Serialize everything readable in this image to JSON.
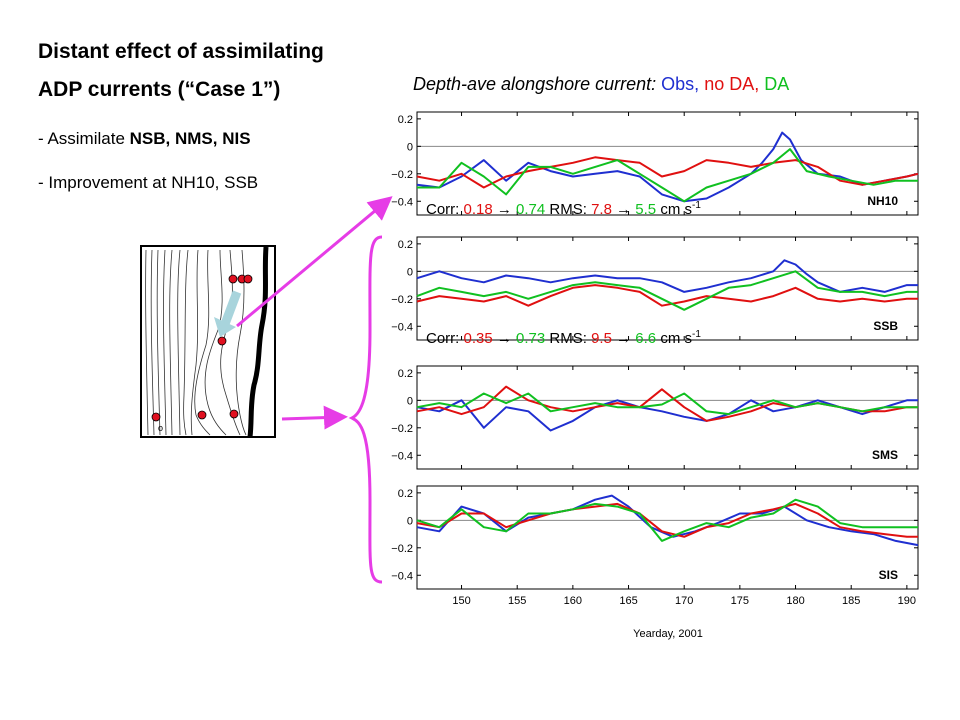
{
  "title": {
    "line1": "Distant effect of assimilating",
    "line2": "ADP currents (“Case 1”)"
  },
  "bullets": {
    "b1_prefix": "- Assimilate ",
    "b1_bold": "NSB, NMS, NIS",
    "b2": "- Improvement at NH10, SSB"
  },
  "subtitle": {
    "prefix": "Depth-ave alongshore current: ",
    "obs": "Obs",
    "sep1": ", ",
    "nodas": "no DA",
    "sep2": ", ",
    "da": "DA"
  },
  "stats": [
    {
      "corr_label": "Corr: ",
      "corr_before": "0.18",
      "arrow": "→",
      "corr_after": "0.74",
      "rms_label": " RMS: ",
      "rms_before": "7.8",
      "rms_after": "5.5",
      "units": " cm s",
      "sup": "-1"
    },
    {
      "corr_label": "Corr: ",
      "corr_before": "0.35",
      "arrow": "→",
      "corr_after": "0.73",
      "rms_label": " RMS: ",
      "rms_before": "9.5",
      "rms_after": "6.6",
      "units": " cm s",
      "sup": "-1"
    }
  ],
  "colors": {
    "obs": "#1f2fd0",
    "nodas": "#e01010",
    "da": "#10c020",
    "magenta": "#e63ce6",
    "map_arrow": "#a8d4dc",
    "station": "#e01020"
  },
  "chart_data": {
    "type": "line",
    "xlabel": "Yearday, 2001",
    "xlim": [
      146,
      191
    ],
    "ylim": [
      -0.5,
      0.25
    ],
    "xticks": [
      150,
      155,
      160,
      165,
      170,
      175,
      180,
      185,
      190
    ],
    "yticks": [
      0.2,
      0,
      -0.2,
      -0.4
    ],
    "ytick_labels": [
      "0.2",
      "0",
      "−0.2",
      "−0.4"
    ],
    "panels": [
      {
        "label": "NH10",
        "series": [
          {
            "color_key": "obs",
            "x": [
              146,
              148,
              150,
              152,
              154,
              156,
              158,
              160,
              162,
              164,
              166,
              168,
              170,
              172,
              174,
              176,
              177,
              178,
              178.8,
              179.5,
              180.5,
              182,
              184,
              186,
              188,
              190,
              191
            ],
            "y": [
              -0.28,
              -0.3,
              -0.22,
              -0.1,
              -0.25,
              -0.12,
              -0.18,
              -0.22,
              -0.2,
              -0.18,
              -0.22,
              -0.35,
              -0.4,
              -0.38,
              -0.3,
              -0.2,
              -0.12,
              -0.02,
              0.1,
              0.05,
              -0.1,
              -0.2,
              -0.22,
              -0.28,
              -0.25,
              -0.22,
              -0.2
            ]
          },
          {
            "color_key": "nodas",
            "x": [
              146,
              148,
              150,
              152,
              154,
              156,
              158,
              160,
              162,
              164,
              166,
              168,
              170,
              172,
              174,
              176,
              178,
              180,
              182,
              184,
              186,
              188,
              190,
              191
            ],
            "y": [
              -0.22,
              -0.25,
              -0.2,
              -0.3,
              -0.22,
              -0.18,
              -0.15,
              -0.12,
              -0.08,
              -0.1,
              -0.12,
              -0.22,
              -0.18,
              -0.1,
              -0.12,
              -0.15,
              -0.12,
              -0.1,
              -0.15,
              -0.25,
              -0.28,
              -0.25,
              -0.22,
              -0.2
            ]
          },
          {
            "color_key": "da",
            "x": [
              146,
              148,
              150,
              152,
              154,
              156,
              158,
              160,
              162,
              164,
              166,
              168,
              170,
              172,
              174,
              176,
              178,
              179.5,
              181,
              183,
              185,
              187,
              189,
              191
            ],
            "y": [
              -0.3,
              -0.3,
              -0.12,
              -0.22,
              -0.35,
              -0.15,
              -0.15,
              -0.2,
              -0.15,
              -0.1,
              -0.2,
              -0.3,
              -0.4,
              -0.3,
              -0.25,
              -0.2,
              -0.12,
              -0.02,
              -0.18,
              -0.22,
              -0.25,
              -0.28,
              -0.25,
              -0.25
            ]
          }
        ]
      },
      {
        "label": "SSB",
        "series": [
          {
            "color_key": "obs",
            "x": [
              146,
              148,
              150,
              152,
              154,
              156,
              158,
              160,
              162,
              164,
              166,
              168,
              170,
              172,
              174,
              176,
              178,
              179,
              180,
              181,
              182,
              184,
              186,
              188,
              190,
              191
            ],
            "y": [
              -0.05,
              0.0,
              -0.05,
              -0.08,
              -0.03,
              -0.05,
              -0.08,
              -0.05,
              -0.03,
              -0.05,
              -0.05,
              -0.08,
              -0.15,
              -0.12,
              -0.08,
              -0.05,
              0.0,
              0.08,
              0.05,
              -0.02,
              -0.08,
              -0.15,
              -0.12,
              -0.15,
              -0.1,
              -0.1
            ]
          },
          {
            "color_key": "nodas",
            "x": [
              146,
              148,
              150,
              152,
              154,
              156,
              158,
              160,
              162,
              164,
              166,
              168,
              170,
              172,
              174,
              176,
              178,
              180,
              182,
              184,
              186,
              188,
              190,
              191
            ],
            "y": [
              -0.22,
              -0.18,
              -0.2,
              -0.22,
              -0.18,
              -0.25,
              -0.18,
              -0.12,
              -0.1,
              -0.12,
              -0.15,
              -0.25,
              -0.22,
              -0.18,
              -0.2,
              -0.22,
              -0.18,
              -0.12,
              -0.2,
              -0.22,
              -0.2,
              -0.22,
              -0.2,
              -0.2
            ]
          },
          {
            "color_key": "da",
            "x": [
              146,
              148,
              150,
              152,
              154,
              156,
              158,
              160,
              162,
              164,
              166,
              168,
              170,
              172,
              174,
              176,
              178,
              180,
              182,
              184,
              186,
              188,
              190,
              191
            ],
            "y": [
              -0.18,
              -0.12,
              -0.15,
              -0.18,
              -0.15,
              -0.2,
              -0.15,
              -0.1,
              -0.08,
              -0.1,
              -0.12,
              -0.2,
              -0.28,
              -0.2,
              -0.12,
              -0.1,
              -0.05,
              0.0,
              -0.12,
              -0.15,
              -0.15,
              -0.18,
              -0.15,
              -0.15
            ]
          }
        ]
      },
      {
        "label": "SMS",
        "series": [
          {
            "color_key": "obs",
            "x": [
              146,
              148,
              150,
              152,
              154,
              156,
              158,
              160,
              162,
              164,
              166,
              168,
              170,
              172,
              174,
              176,
              178,
              180,
              182,
              184,
              186,
              188,
              190,
              191
            ],
            "y": [
              -0.05,
              -0.08,
              0.0,
              -0.2,
              -0.05,
              -0.08,
              -0.22,
              -0.15,
              -0.05,
              0.0,
              -0.05,
              -0.08,
              -0.12,
              -0.15,
              -0.1,
              0.0,
              -0.08,
              -0.05,
              0.0,
              -0.05,
              -0.1,
              -0.05,
              0.0,
              0.0
            ]
          },
          {
            "color_key": "nodas",
            "x": [
              146,
              148,
              150,
              152,
              154,
              156,
              158,
              160,
              162,
              164,
              166,
              168,
              170,
              172,
              174,
              176,
              178,
              180,
              182,
              184,
              186,
              188,
              190,
              191
            ],
            "y": [
              -0.08,
              -0.05,
              -0.1,
              -0.05,
              0.1,
              0.0,
              -0.05,
              -0.08,
              -0.05,
              -0.02,
              -0.05,
              0.08,
              -0.05,
              -0.15,
              -0.12,
              -0.08,
              -0.02,
              -0.05,
              -0.02,
              -0.05,
              -0.08,
              -0.08,
              -0.05,
              -0.05
            ]
          },
          {
            "color_key": "da",
            "x": [
              146,
              148,
              150,
              152,
              154,
              156,
              158,
              160,
              162,
              164,
              166,
              168,
              170,
              172,
              174,
              176,
              178,
              180,
              182,
              184,
              186,
              188,
              190,
              191
            ],
            "y": [
              -0.05,
              -0.02,
              -0.05,
              0.05,
              -0.02,
              0.05,
              -0.08,
              -0.05,
              -0.02,
              -0.05,
              -0.05,
              -0.03,
              0.05,
              -0.08,
              -0.1,
              -0.05,
              0.0,
              -0.05,
              -0.02,
              -0.05,
              -0.08,
              -0.05,
              -0.05,
              -0.05
            ]
          }
        ]
      },
      {
        "label": "SIS",
        "series": [
          {
            "color_key": "obs",
            "x": [
              146,
              148,
              150,
              152,
              154,
              156,
              158,
              160,
              162,
              163.5,
              165,
              167,
              169,
              171,
              173,
              175,
              177,
              179,
              181,
              183,
              185,
              187,
              189,
              191
            ],
            "y": [
              -0.05,
              -0.08,
              0.1,
              0.05,
              -0.08,
              0.02,
              0.05,
              0.08,
              0.15,
              0.18,
              0.1,
              -0.05,
              -0.12,
              -0.08,
              -0.02,
              0.05,
              0.05,
              0.1,
              0.0,
              -0.05,
              -0.08,
              -0.1,
              -0.15,
              -0.18
            ]
          },
          {
            "color_key": "nodas",
            "x": [
              146,
              148,
              150,
              152,
              154,
              156,
              158,
              160,
              162,
              164,
              166,
              168,
              170,
              172,
              174,
              176,
              178,
              180,
              182,
              184,
              186,
              188,
              190,
              191
            ],
            "y": [
              -0.02,
              -0.05,
              0.05,
              0.05,
              -0.05,
              0.0,
              0.05,
              0.08,
              0.1,
              0.12,
              0.05,
              -0.08,
              -0.12,
              -0.05,
              -0.02,
              0.05,
              0.08,
              0.12,
              0.05,
              -0.05,
              -0.08,
              -0.1,
              -0.12,
              -0.12
            ]
          },
          {
            "color_key": "da",
            "x": [
              146,
              148,
              150,
              152,
              154,
              156,
              158,
              160,
              162,
              164,
              166,
              168,
              170,
              172,
              174,
              176,
              178,
              180,
              182,
              184,
              186,
              188,
              190,
              191
            ],
            "y": [
              0.0,
              -0.05,
              0.08,
              -0.05,
              -0.08,
              0.05,
              0.05,
              0.08,
              0.12,
              0.1,
              0.05,
              -0.15,
              -0.08,
              -0.02,
              -0.05,
              0.02,
              0.05,
              0.15,
              0.1,
              -0.02,
              -0.05,
              -0.05,
              -0.05,
              -0.05
            ]
          }
        ]
      }
    ]
  }
}
